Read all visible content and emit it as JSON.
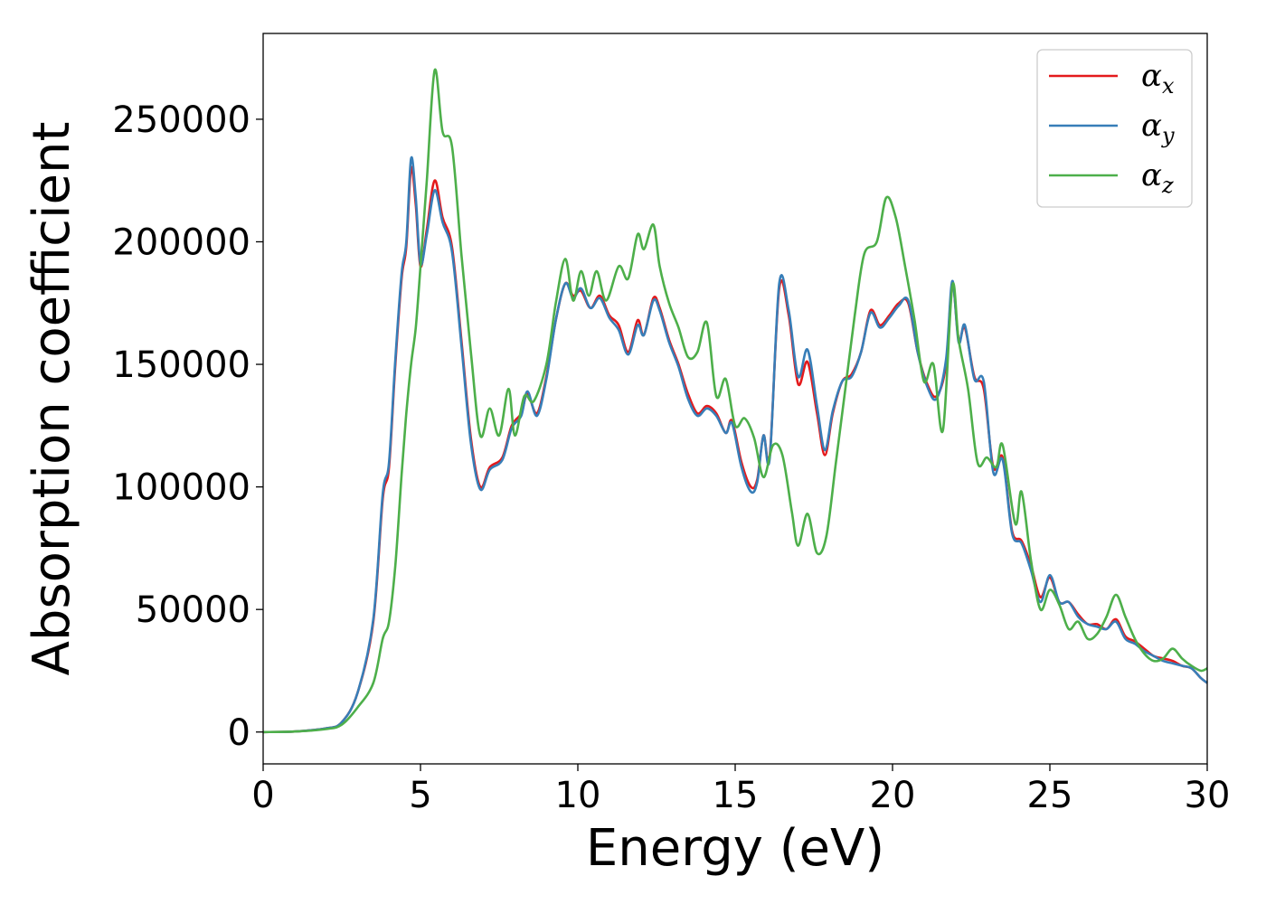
{
  "chart_data": {
    "type": "line",
    "title": "",
    "xlabel": "Energy (eV)",
    "ylabel": "Absorption coefficient",
    "xlim": [
      0,
      30
    ],
    "ylim": [
      -13000,
      285000
    ],
    "xticks": [
      0,
      5,
      10,
      15,
      20,
      25,
      30
    ],
    "yticks": [
      0,
      50000,
      100000,
      150000,
      200000,
      250000
    ],
    "grid": false,
    "legend_position": "top-right",
    "series": [
      {
        "name": "α",
        "subscript": "x",
        "color": "#e41a1c",
        "points": [
          [
            0,
            0
          ],
          [
            1,
            200
          ],
          [
            2,
            1500
          ],
          [
            2.5,
            4000
          ],
          [
            3,
            16000
          ],
          [
            3.5,
            45000
          ],
          [
            3.8,
            95000
          ],
          [
            4.0,
            108000
          ],
          [
            4.2,
            150000
          ],
          [
            4.4,
            185000
          ],
          [
            4.55,
            198000
          ],
          [
            4.7,
            230000
          ],
          [
            4.85,
            215000
          ],
          [
            5.0,
            190000
          ],
          [
            5.2,
            205000
          ],
          [
            5.45,
            225000
          ],
          [
            5.7,
            210000
          ],
          [
            6.0,
            198000
          ],
          [
            6.3,
            160000
          ],
          [
            6.6,
            120000
          ],
          [
            6.9,
            100000
          ],
          [
            7.2,
            108000
          ],
          [
            7.6,
            112000
          ],
          [
            7.9,
            125000
          ],
          [
            8.2,
            130000
          ],
          [
            8.4,
            138000
          ],
          [
            8.7,
            130000
          ],
          [
            9.0,
            145000
          ],
          [
            9.3,
            168000
          ],
          [
            9.6,
            183000
          ],
          [
            9.85,
            178000
          ],
          [
            10.1,
            180000
          ],
          [
            10.4,
            173000
          ],
          [
            10.7,
            178000
          ],
          [
            11.0,
            170000
          ],
          [
            11.3,
            166000
          ],
          [
            11.6,
            155000
          ],
          [
            11.9,
            168000
          ],
          [
            12.1,
            162000
          ],
          [
            12.4,
            177000
          ],
          [
            12.6,
            173000
          ],
          [
            12.9,
            160000
          ],
          [
            13.2,
            150000
          ],
          [
            13.5,
            138000
          ],
          [
            13.8,
            130000
          ],
          [
            14.1,
            133000
          ],
          [
            14.4,
            130000
          ],
          [
            14.7,
            122000
          ],
          [
            14.9,
            127000
          ],
          [
            15.2,
            110000
          ],
          [
            15.5,
            100000
          ],
          [
            15.7,
            103000
          ],
          [
            15.9,
            121000
          ],
          [
            16.1,
            113000
          ],
          [
            16.4,
            181000
          ],
          [
            16.7,
            170000
          ],
          [
            17.0,
            142000
          ],
          [
            17.3,
            151000
          ],
          [
            17.6,
            130000
          ],
          [
            17.85,
            113000
          ],
          [
            18.1,
            130000
          ],
          [
            18.4,
            143000
          ],
          [
            18.7,
            146000
          ],
          [
            19.0,
            155000
          ],
          [
            19.3,
            172000
          ],
          [
            19.6,
            166000
          ],
          [
            19.9,
            170000
          ],
          [
            20.2,
            175000
          ],
          [
            20.5,
            175000
          ],
          [
            20.8,
            155000
          ],
          [
            21.1,
            142000
          ],
          [
            21.4,
            137000
          ],
          [
            21.7,
            150000
          ],
          [
            21.9,
            183000
          ],
          [
            22.1,
            160000
          ],
          [
            22.3,
            165000
          ],
          [
            22.6,
            145000
          ],
          [
            22.9,
            140000
          ],
          [
            23.2,
            108000
          ],
          [
            23.5,
            112000
          ],
          [
            23.8,
            82000
          ],
          [
            24.1,
            78000
          ],
          [
            24.4,
            68000
          ],
          [
            24.7,
            55000
          ],
          [
            25.0,
            63000
          ],
          [
            25.3,
            53000
          ],
          [
            25.6,
            53000
          ],
          [
            25.9,
            48000
          ],
          [
            26.2,
            44000
          ],
          [
            26.5,
            44000
          ],
          [
            26.8,
            42000
          ],
          [
            27.1,
            46000
          ],
          [
            27.4,
            39000
          ],
          [
            27.7,
            37000
          ],
          [
            28.0,
            34000
          ],
          [
            28.3,
            31000
          ],
          [
            28.6,
            30000
          ],
          [
            28.9,
            29000
          ],
          [
            29.2,
            27000
          ],
          [
            29.5,
            26000
          ],
          [
            29.8,
            22000
          ],
          [
            30.0,
            20000
          ]
        ]
      },
      {
        "name": "α",
        "subscript": "y",
        "color": "#377eb8",
        "points": [
          [
            0,
            0
          ],
          [
            1,
            200
          ],
          [
            2,
            1500
          ],
          [
            2.5,
            4000
          ],
          [
            3,
            16000
          ],
          [
            3.5,
            46000
          ],
          [
            3.8,
            97000
          ],
          [
            4.0,
            110000
          ],
          [
            4.2,
            152000
          ],
          [
            4.4,
            187000
          ],
          [
            4.55,
            200000
          ],
          [
            4.7,
            234000
          ],
          [
            4.85,
            218000
          ],
          [
            5.0,
            191000
          ],
          [
            5.2,
            203000
          ],
          [
            5.45,
            221000
          ],
          [
            5.7,
            208000
          ],
          [
            6.0,
            196000
          ],
          [
            6.3,
            158000
          ],
          [
            6.6,
            118000
          ],
          [
            6.9,
            99000
          ],
          [
            7.2,
            107000
          ],
          [
            7.6,
            111000
          ],
          [
            7.9,
            124000
          ],
          [
            8.2,
            129000
          ],
          [
            8.4,
            139000
          ],
          [
            8.7,
            129000
          ],
          [
            9.0,
            144000
          ],
          [
            9.3,
            168000
          ],
          [
            9.6,
            183000
          ],
          [
            9.85,
            177000
          ],
          [
            10.1,
            181000
          ],
          [
            10.4,
            173000
          ],
          [
            10.7,
            177000
          ],
          [
            11.0,
            169000
          ],
          [
            11.3,
            164000
          ],
          [
            11.6,
            154000
          ],
          [
            11.9,
            166000
          ],
          [
            12.1,
            162000
          ],
          [
            12.4,
            176000
          ],
          [
            12.6,
            172000
          ],
          [
            12.9,
            159000
          ],
          [
            13.2,
            149000
          ],
          [
            13.5,
            136000
          ],
          [
            13.8,
            129000
          ],
          [
            14.1,
            132000
          ],
          [
            14.4,
            129000
          ],
          [
            14.7,
            122000
          ],
          [
            14.9,
            126000
          ],
          [
            15.2,
            108000
          ],
          [
            15.5,
            98000
          ],
          [
            15.7,
            102000
          ],
          [
            15.9,
            121000
          ],
          [
            16.1,
            112000
          ],
          [
            16.4,
            183000
          ],
          [
            16.7,
            172000
          ],
          [
            17.0,
            145000
          ],
          [
            17.3,
            156000
          ],
          [
            17.6,
            133000
          ],
          [
            17.85,
            115000
          ],
          [
            18.1,
            131000
          ],
          [
            18.4,
            143000
          ],
          [
            18.7,
            145000
          ],
          [
            19.0,
            155000
          ],
          [
            19.3,
            171000
          ],
          [
            19.6,
            165000
          ],
          [
            19.9,
            169000
          ],
          [
            20.2,
            174000
          ],
          [
            20.5,
            176000
          ],
          [
            20.8,
            155000
          ],
          [
            21.1,
            141000
          ],
          [
            21.4,
            136000
          ],
          [
            21.7,
            152000
          ],
          [
            21.9,
            184000
          ],
          [
            22.1,
            159000
          ],
          [
            22.3,
            166000
          ],
          [
            22.6,
            144000
          ],
          [
            22.9,
            143000
          ],
          [
            23.2,
            106000
          ],
          [
            23.5,
            111000
          ],
          [
            23.8,
            81000
          ],
          [
            24.1,
            77000
          ],
          [
            24.4,
            66000
          ],
          [
            24.7,
            53000
          ],
          [
            25.0,
            64000
          ],
          [
            25.3,
            53000
          ],
          [
            25.6,
            53000
          ],
          [
            25.9,
            47000
          ],
          [
            26.2,
            44000
          ],
          [
            26.5,
            43000
          ],
          [
            26.8,
            42000
          ],
          [
            27.1,
            45000
          ],
          [
            27.4,
            38000
          ],
          [
            27.7,
            36000
          ],
          [
            28.0,
            33000
          ],
          [
            28.3,
            31000
          ],
          [
            28.6,
            29000
          ],
          [
            28.9,
            28000
          ],
          [
            29.2,
            27000
          ],
          [
            29.5,
            26000
          ],
          [
            29.8,
            22000
          ],
          [
            30.0,
            20000
          ]
        ]
      },
      {
        "name": "α",
        "subscript": "z",
        "color": "#4daf4a",
        "points": [
          [
            0,
            0
          ],
          [
            1,
            200
          ],
          [
            2,
            1200
          ],
          [
            2.5,
            3000
          ],
          [
            3,
            10000
          ],
          [
            3.5,
            20000
          ],
          [
            3.8,
            38000
          ],
          [
            4.0,
            45000
          ],
          [
            4.2,
            68000
          ],
          [
            4.4,
            105000
          ],
          [
            4.55,
            130000
          ],
          [
            4.7,
            150000
          ],
          [
            4.85,
            165000
          ],
          [
            5.0,
            190000
          ],
          [
            5.2,
            225000
          ],
          [
            5.45,
            270000
          ],
          [
            5.7,
            245000
          ],
          [
            6.0,
            239000
          ],
          [
            6.3,
            195000
          ],
          [
            6.6,
            155000
          ],
          [
            6.9,
            121000
          ],
          [
            7.2,
            132000
          ],
          [
            7.5,
            121000
          ],
          [
            7.8,
            140000
          ],
          [
            8.0,
            121000
          ],
          [
            8.3,
            137000
          ],
          [
            8.6,
            135000
          ],
          [
            9.0,
            150000
          ],
          [
            9.3,
            175000
          ],
          [
            9.6,
            193000
          ],
          [
            9.85,
            176000
          ],
          [
            10.1,
            188000
          ],
          [
            10.35,
            178000
          ],
          [
            10.6,
            188000
          ],
          [
            10.9,
            176000
          ],
          [
            11.3,
            190000
          ],
          [
            11.6,
            185000
          ],
          [
            11.9,
            203000
          ],
          [
            12.1,
            197000
          ],
          [
            12.4,
            207000
          ],
          [
            12.6,
            190000
          ],
          [
            12.9,
            175000
          ],
          [
            13.2,
            165000
          ],
          [
            13.5,
            153000
          ],
          [
            13.8,
            155000
          ],
          [
            14.1,
            167000
          ],
          [
            14.4,
            137000
          ],
          [
            14.7,
            144000
          ],
          [
            15.0,
            125000
          ],
          [
            15.3,
            128000
          ],
          [
            15.6,
            120000
          ],
          [
            15.9,
            104000
          ],
          [
            16.2,
            117000
          ],
          [
            16.5,
            113000
          ],
          [
            16.8,
            90000
          ],
          [
            17.0,
            76000
          ],
          [
            17.3,
            89000
          ],
          [
            17.6,
            73000
          ],
          [
            17.9,
            80000
          ],
          [
            18.2,
            110000
          ],
          [
            18.5,
            140000
          ],
          [
            18.8,
            170000
          ],
          [
            19.1,
            195000
          ],
          [
            19.5,
            200000
          ],
          [
            19.8,
            218000
          ],
          [
            20.1,
            210000
          ],
          [
            20.4,
            190000
          ],
          [
            20.7,
            168000
          ],
          [
            21.0,
            143000
          ],
          [
            21.3,
            150000
          ],
          [
            21.6,
            123000
          ],
          [
            21.9,
            182000
          ],
          [
            22.1,
            160000
          ],
          [
            22.4,
            140000
          ],
          [
            22.7,
            110000
          ],
          [
            23.0,
            112000
          ],
          [
            23.3,
            108000
          ],
          [
            23.5,
            117000
          ],
          [
            23.9,
            85000
          ],
          [
            24.1,
            98000
          ],
          [
            24.4,
            70000
          ],
          [
            24.7,
            50000
          ],
          [
            25.0,
            58000
          ],
          [
            25.3,
            52000
          ],
          [
            25.6,
            42000
          ],
          [
            25.9,
            45000
          ],
          [
            26.2,
            38000
          ],
          [
            26.5,
            40000
          ],
          [
            26.8,
            47000
          ],
          [
            27.1,
            56000
          ],
          [
            27.4,
            47000
          ],
          [
            27.7,
            38000
          ],
          [
            28.0,
            32000
          ],
          [
            28.3,
            29000
          ],
          [
            28.6,
            30000
          ],
          [
            28.9,
            34000
          ],
          [
            29.2,
            30000
          ],
          [
            29.5,
            27000
          ],
          [
            29.8,
            25000
          ],
          [
            30.0,
            26000
          ]
        ]
      }
    ]
  }
}
